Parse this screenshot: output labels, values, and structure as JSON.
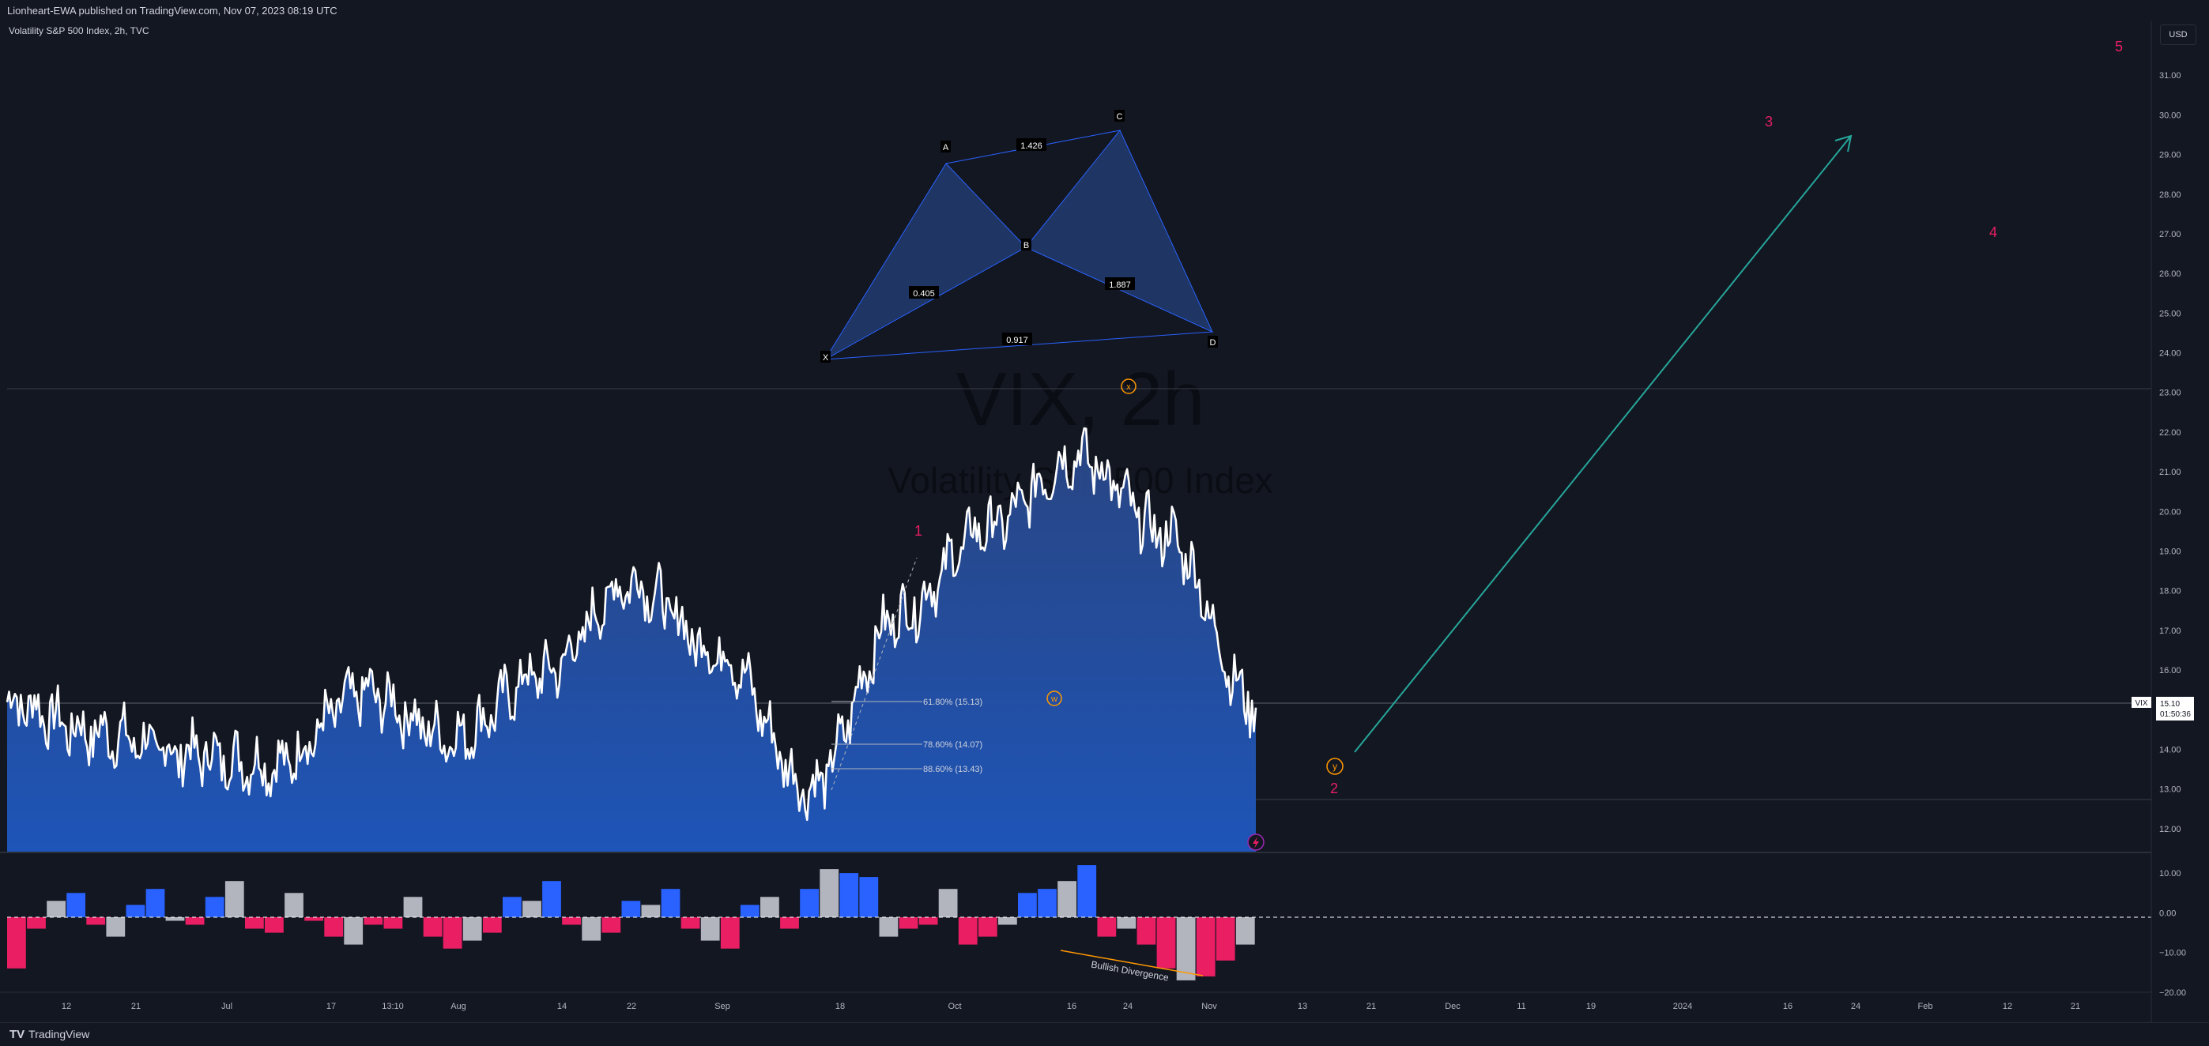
{
  "header": {
    "publish_info": "Lionheart-EWA published on TradingView.com, Nov 07, 2023 08:19 UTC"
  },
  "legend": {
    "symbol_line": "Volatility S&P 500 Index, 2h, TVC"
  },
  "watermark": {
    "title": "VIX, 2h",
    "subtitle": "Volatility S&P 500 Index"
  },
  "price_scale": {
    "currency_button": "USD",
    "last_price_tag": "VIX",
    "last_price": "15.10",
    "countdown": "01:50:36"
  },
  "footer": {
    "brand": "TradingView",
    "brand_icon": "tradingview-logo-icon"
  },
  "colors": {
    "background": "#131722",
    "area_top": "#2a4a8a",
    "area_bottom": "#1e53b4",
    "line": "#ffffff",
    "harmonic_fill": "#1f3563",
    "wave_label": "#e91e63",
    "arrow": "#26a69a",
    "osc_positive": "#2962ff",
    "osc_negative": "#e91e63",
    "osc_neutral": "#b2b5be",
    "divergence": "#ff9800"
  },
  "harmonic_pattern": {
    "points": [
      "X",
      "A",
      "B",
      "C",
      "D"
    ],
    "ratios": {
      "XB": "0.405",
      "AC": "1.426",
      "BD": "1.887",
      "XD": "0.917"
    }
  },
  "fib_levels": [
    {
      "label": "61.80% (15.13)",
      "value": 15.13
    },
    {
      "label": "78.60% (14.07)",
      "value": 14.07
    },
    {
      "label": "88.60% (13.43)",
      "value": 13.43
    }
  ],
  "wave_labels": {
    "impulse": [
      "1",
      "2",
      "3",
      "4",
      "5"
    ],
    "correction": [
      "w",
      "x",
      "y"
    ]
  },
  "annotations": {
    "divergence": "Bullish Divergence"
  },
  "chart_data": {
    "type": "area",
    "title": "VIX, 2h",
    "subtitle": "Volatility S&P 500 Index",
    "ylim": [
      11.4,
      32.0
    ],
    "y_ticks": [
      "31.00",
      "30.00",
      "29.00",
      "28.00",
      "27.00",
      "26.00",
      "25.00",
      "24.00",
      "23.00",
      "22.00",
      "21.00",
      "20.00",
      "19.00",
      "18.00",
      "17.00",
      "16.00",
      "15.00",
      "14.00",
      "13.00",
      "12.00"
    ],
    "x_ticks": [
      "12",
      "21",
      "Jul",
      "17",
      "13:10",
      "Aug",
      "14",
      "22",
      "Sep",
      "18",
      "Oct",
      "16",
      "24",
      "Nov",
      "13",
      "21",
      "Dec",
      "11",
      "19",
      "2024",
      "16",
      "24",
      "Feb",
      "12",
      "21"
    ],
    "x": [
      "Jun 12",
      "Jun 21",
      "Jul 3",
      "Jul 17",
      "Jul 27",
      "Aug 1",
      "Aug 14",
      "Aug 22",
      "Sep 1",
      "Sep 18",
      "Oct 2",
      "Oct 16",
      "Oct 24",
      "Nov 1",
      "Nov 7"
    ],
    "series": [
      {
        "values": [
          15.2,
          14.4,
          13.9,
          13.6,
          15.4,
          14.3,
          15.9,
          18.2,
          16.4,
          13.0,
          17.4,
          19.6,
          21.4,
          19.4,
          15.1
        ]
      }
    ],
    "oscillator": {
      "ylim": [
        -20,
        14
      ],
      "y_ticks": [
        "10.00",
        "0.00",
        "−10.00",
        "−20.00"
      ],
      "values": [
        -14,
        -4,
        3,
        5,
        -3,
        -6,
        2,
        6,
        -2,
        -3,
        4,
        8,
        -4,
        -5,
        5,
        -2,
        -6,
        -8,
        -3,
        -4,
        4,
        -6,
        -9,
        -7,
        -5,
        4,
        3,
        8,
        -3,
        -7,
        -5,
        3,
        2,
        6,
        -4,
        -7,
        -9,
        2,
        4,
        -4,
        6,
        11,
        10,
        9,
        -6,
        -4,
        -3,
        6,
        -8,
        -6,
        -3,
        5,
        6,
        8,
        12,
        -6,
        -4,
        -8,
        -14,
        -17,
        -16,
        -12,
        -8
      ],
      "label": "Bullish Divergence"
    }
  }
}
